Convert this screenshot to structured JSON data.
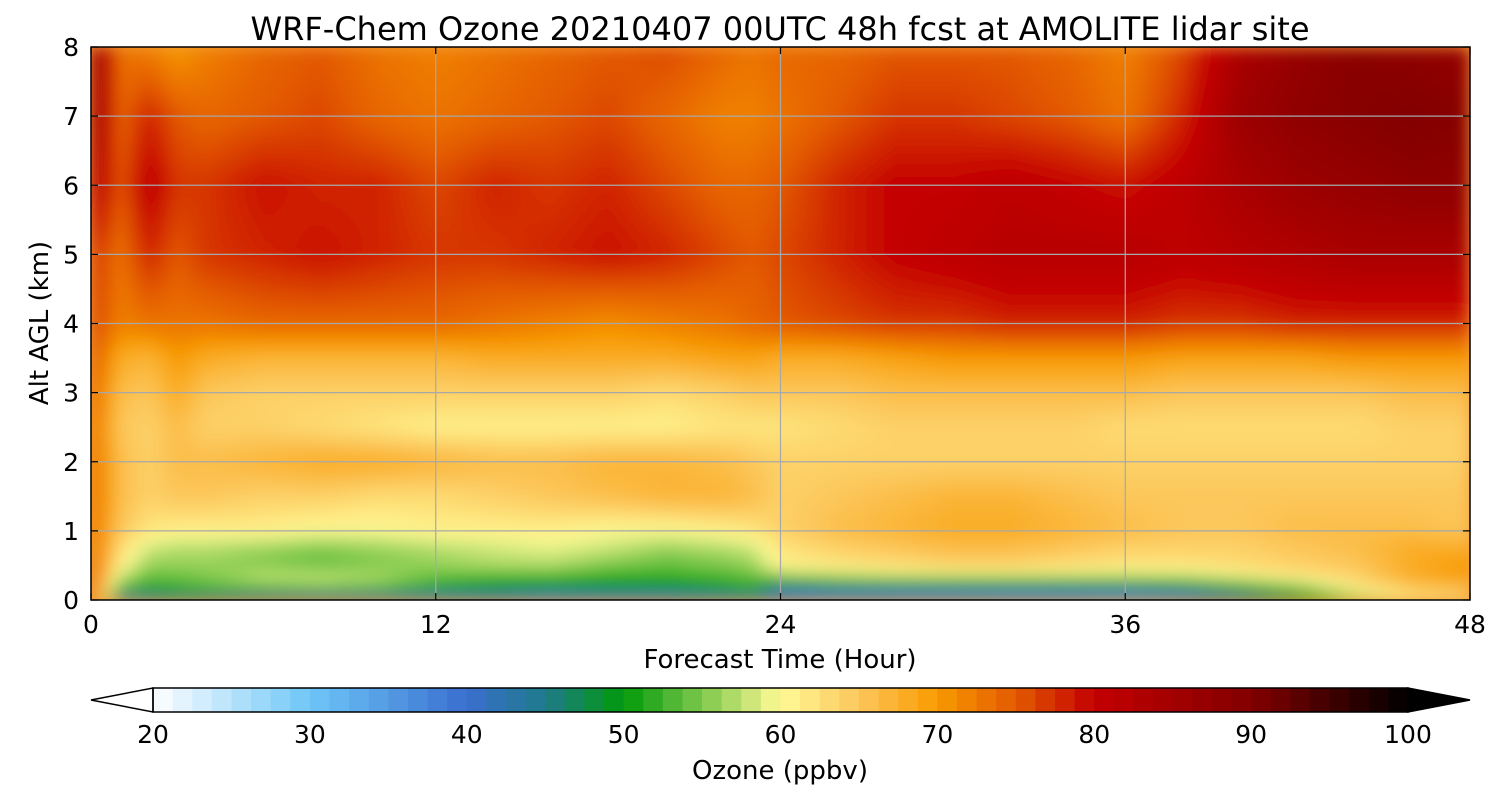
{
  "chart_data": {
    "type": "heatmap",
    "title": "WRF-Chem Ozone  20210407 00UTC 48h fcst at AMOLITE lidar site",
    "xlabel": "Forecast Time (Hour)",
    "ylabel": "Alt AGL (km)",
    "xlim": [
      0,
      48
    ],
    "ylim": [
      0,
      8
    ],
    "x_ticks": [
      "0",
      "12",
      "24",
      "36",
      "48"
    ],
    "y_ticks": [
      "0",
      "1",
      "2",
      "3",
      "4",
      "5",
      "6",
      "7",
      "8"
    ],
    "grid": true,
    "x_hours": [
      0,
      1,
      2,
      3,
      4,
      6,
      8,
      10,
      12,
      14,
      16,
      18,
      20,
      22,
      23,
      24,
      26,
      28,
      30,
      32,
      34,
      36,
      38,
      40,
      42,
      44,
      46,
      48
    ],
    "y_km": [
      0,
      0.1,
      0.2,
      0.35,
      0.5,
      0.75,
      1.0,
      1.5,
      2.0,
      2.5,
      3.0,
      3.5,
      4.0,
      5.0,
      6.0,
      7.0,
      8.0
    ],
    "ozone_ppbv": [
      [
        77,
        36,
        40,
        41,
        41,
        41,
        40,
        39,
        38,
        38,
        37,
        38,
        38,
        38,
        38,
        36,
        35,
        35,
        35,
        34,
        34,
        33,
        34,
        40,
        46,
        55,
        60,
        62
      ],
      [
        77,
        48,
        47,
        48,
        48,
        46,
        46,
        46,
        45,
        45,
        43,
        44,
        44,
        46,
        48,
        40,
        40,
        40,
        40,
        40,
        40,
        40,
        42,
        46,
        50,
        58,
        63,
        65
      ],
      [
        76,
        55,
        52,
        53,
        54,
        55,
        56,
        55,
        52,
        50,
        50,
        50,
        50,
        51,
        52,
        46,
        48,
        48,
        48,
        48,
        48,
        48,
        49,
        52,
        56,
        62,
        66,
        67
      ],
      [
        75,
        58,
        54,
        54,
        55,
        58,
        58,
        57,
        54,
        53,
        53,
        52,
        52,
        53,
        54,
        56,
        57,
        58,
        58,
        58,
        58,
        58,
        58,
        60,
        62,
        64,
        68,
        70
      ],
      [
        75,
        61,
        56,
        56,
        56,
        55,
        54,
        55,
        56,
        57,
        57,
        55,
        54,
        55,
        56,
        61,
        62,
        63,
        64,
        64,
        63,
        62,
        62,
        63,
        64,
        65,
        68,
        70
      ],
      [
        74,
        63,
        58,
        57,
        57,
        56,
        55,
        56,
        57,
        58,
        59,
        58,
        56,
        57,
        58,
        62,
        64,
        65,
        66,
        66,
        65,
        64,
        64,
        64,
        65,
        66,
        68,
        68
      ],
      [
        74,
        65,
        62,
        61,
        61,
        61,
        60,
        60,
        61,
        61,
        61,
        60,
        60,
        61,
        62,
        64,
        66,
        67,
        68,
        68,
        67,
        66,
        65,
        65,
        66,
        66,
        66,
        65
      ],
      [
        74,
        66,
        64,
        65,
        65,
        64,
        64,
        63,
        63,
        64,
        65,
        66,
        67,
        67,
        66,
        64,
        65,
        66,
        67,
        67,
        66,
        65,
        65,
        65,
        65,
        65,
        65,
        65
      ],
      [
        74,
        66,
        64,
        66,
        66,
        67,
        68,
        68,
        67,
        66,
        66,
        67,
        67,
        66,
        65,
        64,
        64,
        64,
        64,
        64,
        64,
        64,
        64,
        64,
        64,
        64,
        64,
        64
      ],
      [
        74,
        65,
        64,
        66,
        64,
        64,
        63,
        62,
        61,
        61,
        61,
        61,
        61,
        62,
        62,
        62,
        63,
        64,
        64,
        64,
        64,
        63,
        63,
        63,
        63,
        63,
        64,
        64
      ],
      [
        75,
        66,
        65,
        68,
        65,
        64,
        64,
        64,
        64,
        64,
        64,
        64,
        63,
        64,
        65,
        65,
        65,
        66,
        66,
        66,
        66,
        66,
        65,
        65,
        65,
        65,
        66,
        66
      ],
      [
        76,
        68,
        67,
        70,
        68,
        67,
        67,
        67,
        67,
        68,
        68,
        68,
        68,
        69,
        69,
        68,
        68,
        69,
        70,
        70,
        70,
        70,
        69,
        69,
        69,
        70,
        70,
        70
      ],
      [
        77,
        72,
        73,
        73,
        73,
        74,
        74,
        74,
        74,
        73,
        72,
        71,
        72,
        73,
        74,
        75,
        76,
        77,
        77,
        78,
        78,
        78,
        77,
        77,
        78,
        78,
        78,
        78
      ],
      [
        78,
        73,
        78,
        75,
        77,
        78,
        79,
        78,
        77,
        77,
        78,
        79,
        78,
        76,
        75,
        76,
        78,
        80,
        81,
        82,
        82,
        82,
        81,
        82,
        83,
        84,
        84,
        84
      ],
      [
        84,
        75,
        81,
        77,
        77,
        79,
        78,
        78,
        76,
        78,
        77,
        78,
        76,
        74,
        74,
        75,
        78,
        80,
        80,
        81,
        80,
        79,
        81,
        84,
        86,
        87,
        88,
        88
      ],
      [
        88,
        74,
        78,
        75,
        74,
        75,
        76,
        74,
        73,
        74,
        75,
        76,
        74,
        72,
        72,
        73,
        75,
        77,
        77,
        76,
        75,
        73,
        78,
        86,
        88,
        89,
        90,
        89
      ],
      [
        90,
        73,
        72,
        70,
        72,
        74,
        75,
        73,
        72,
        73,
        74,
        75,
        76,
        74,
        73,
        74,
        74,
        75,
        75,
        75,
        74,
        72,
        76,
        84,
        87,
        89,
        88,
        87
      ]
    ],
    "colorbar": {
      "label": "Ozone  (ppbv)",
      "ticks": [
        "20",
        "30",
        "40",
        "50",
        "60",
        "70",
        "80",
        "90",
        "100"
      ],
      "vmin": 20,
      "vmax": 100,
      "extend": "both",
      "colors": [
        {
          "v": 20,
          "c": "#ffffff"
        },
        {
          "v": 30,
          "c": "#6ec6f7"
        },
        {
          "v": 40,
          "c": "#3a6fcf"
        },
        {
          "v": 45,
          "c": "#1f7a8a"
        },
        {
          "v": 50,
          "c": "#009a0a"
        },
        {
          "v": 55,
          "c": "#7ec84c"
        },
        {
          "v": 60,
          "c": "#fffa96"
        },
        {
          "v": 65,
          "c": "#fcc75b"
        },
        {
          "v": 70,
          "c": "#f89a00"
        },
        {
          "v": 75,
          "c": "#e35a00"
        },
        {
          "v": 80,
          "c": "#c40000"
        },
        {
          "v": 90,
          "c": "#820000"
        },
        {
          "v": 100,
          "c": "#000000"
        }
      ]
    }
  }
}
